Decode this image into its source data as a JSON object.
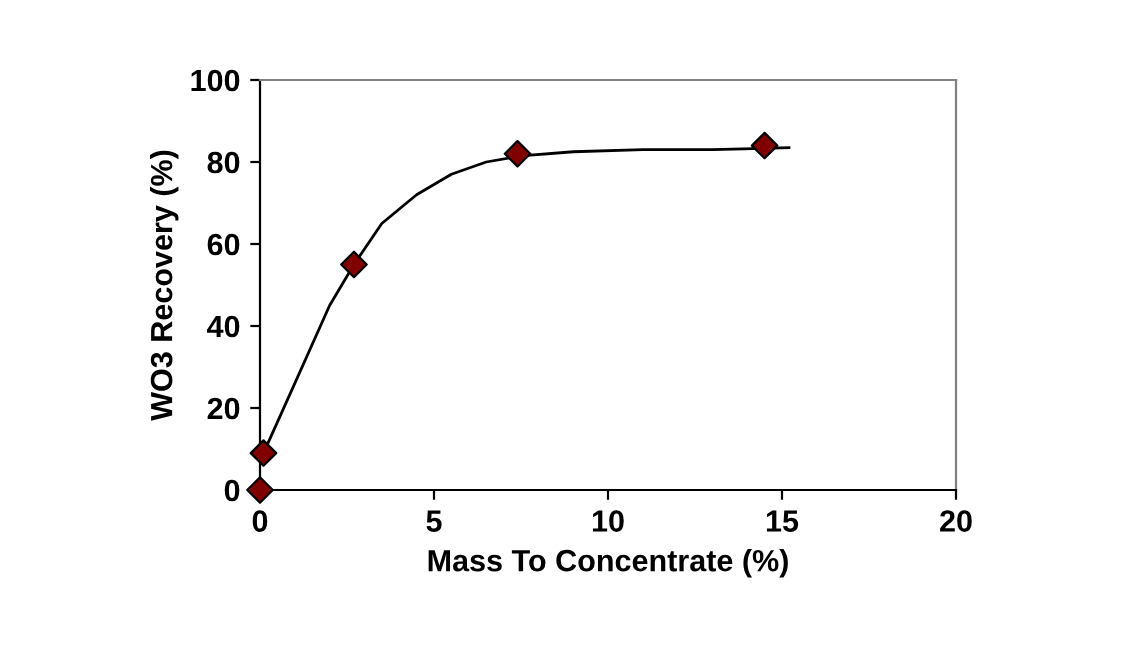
{
  "chart_data": {
    "type": "scatter",
    "xlabel": "Mass To Concentrate (%)",
    "ylabel": "WO3 Recovery (%)",
    "xlim": [
      0,
      20
    ],
    "ylim": [
      0,
      100
    ],
    "xticks": [
      0,
      5,
      10,
      15,
      20
    ],
    "yticks": [
      0,
      20,
      40,
      60,
      80,
      100
    ],
    "grid": false,
    "marker": "diamond",
    "series": [
      {
        "type": "line",
        "color": "#000000",
        "marker": "none",
        "line_style": "solid",
        "x": [
          0.1,
          1,
          2,
          2.7,
          3.5,
          4.5,
          5.5,
          6.5,
          7.5,
          9,
          11,
          13,
          15.2
        ],
        "values": [
          9,
          26,
          45,
          55,
          65,
          72,
          77,
          80,
          81.5,
          82.5,
          83,
          83,
          83.5
        ]
      },
      {
        "color": "#800000",
        "x": [
          0,
          0.1,
          2.7,
          7.4,
          14.5
        ],
        "values": [
          0,
          9,
          55,
          82,
          84
        ]
      }
    ]
  }
}
